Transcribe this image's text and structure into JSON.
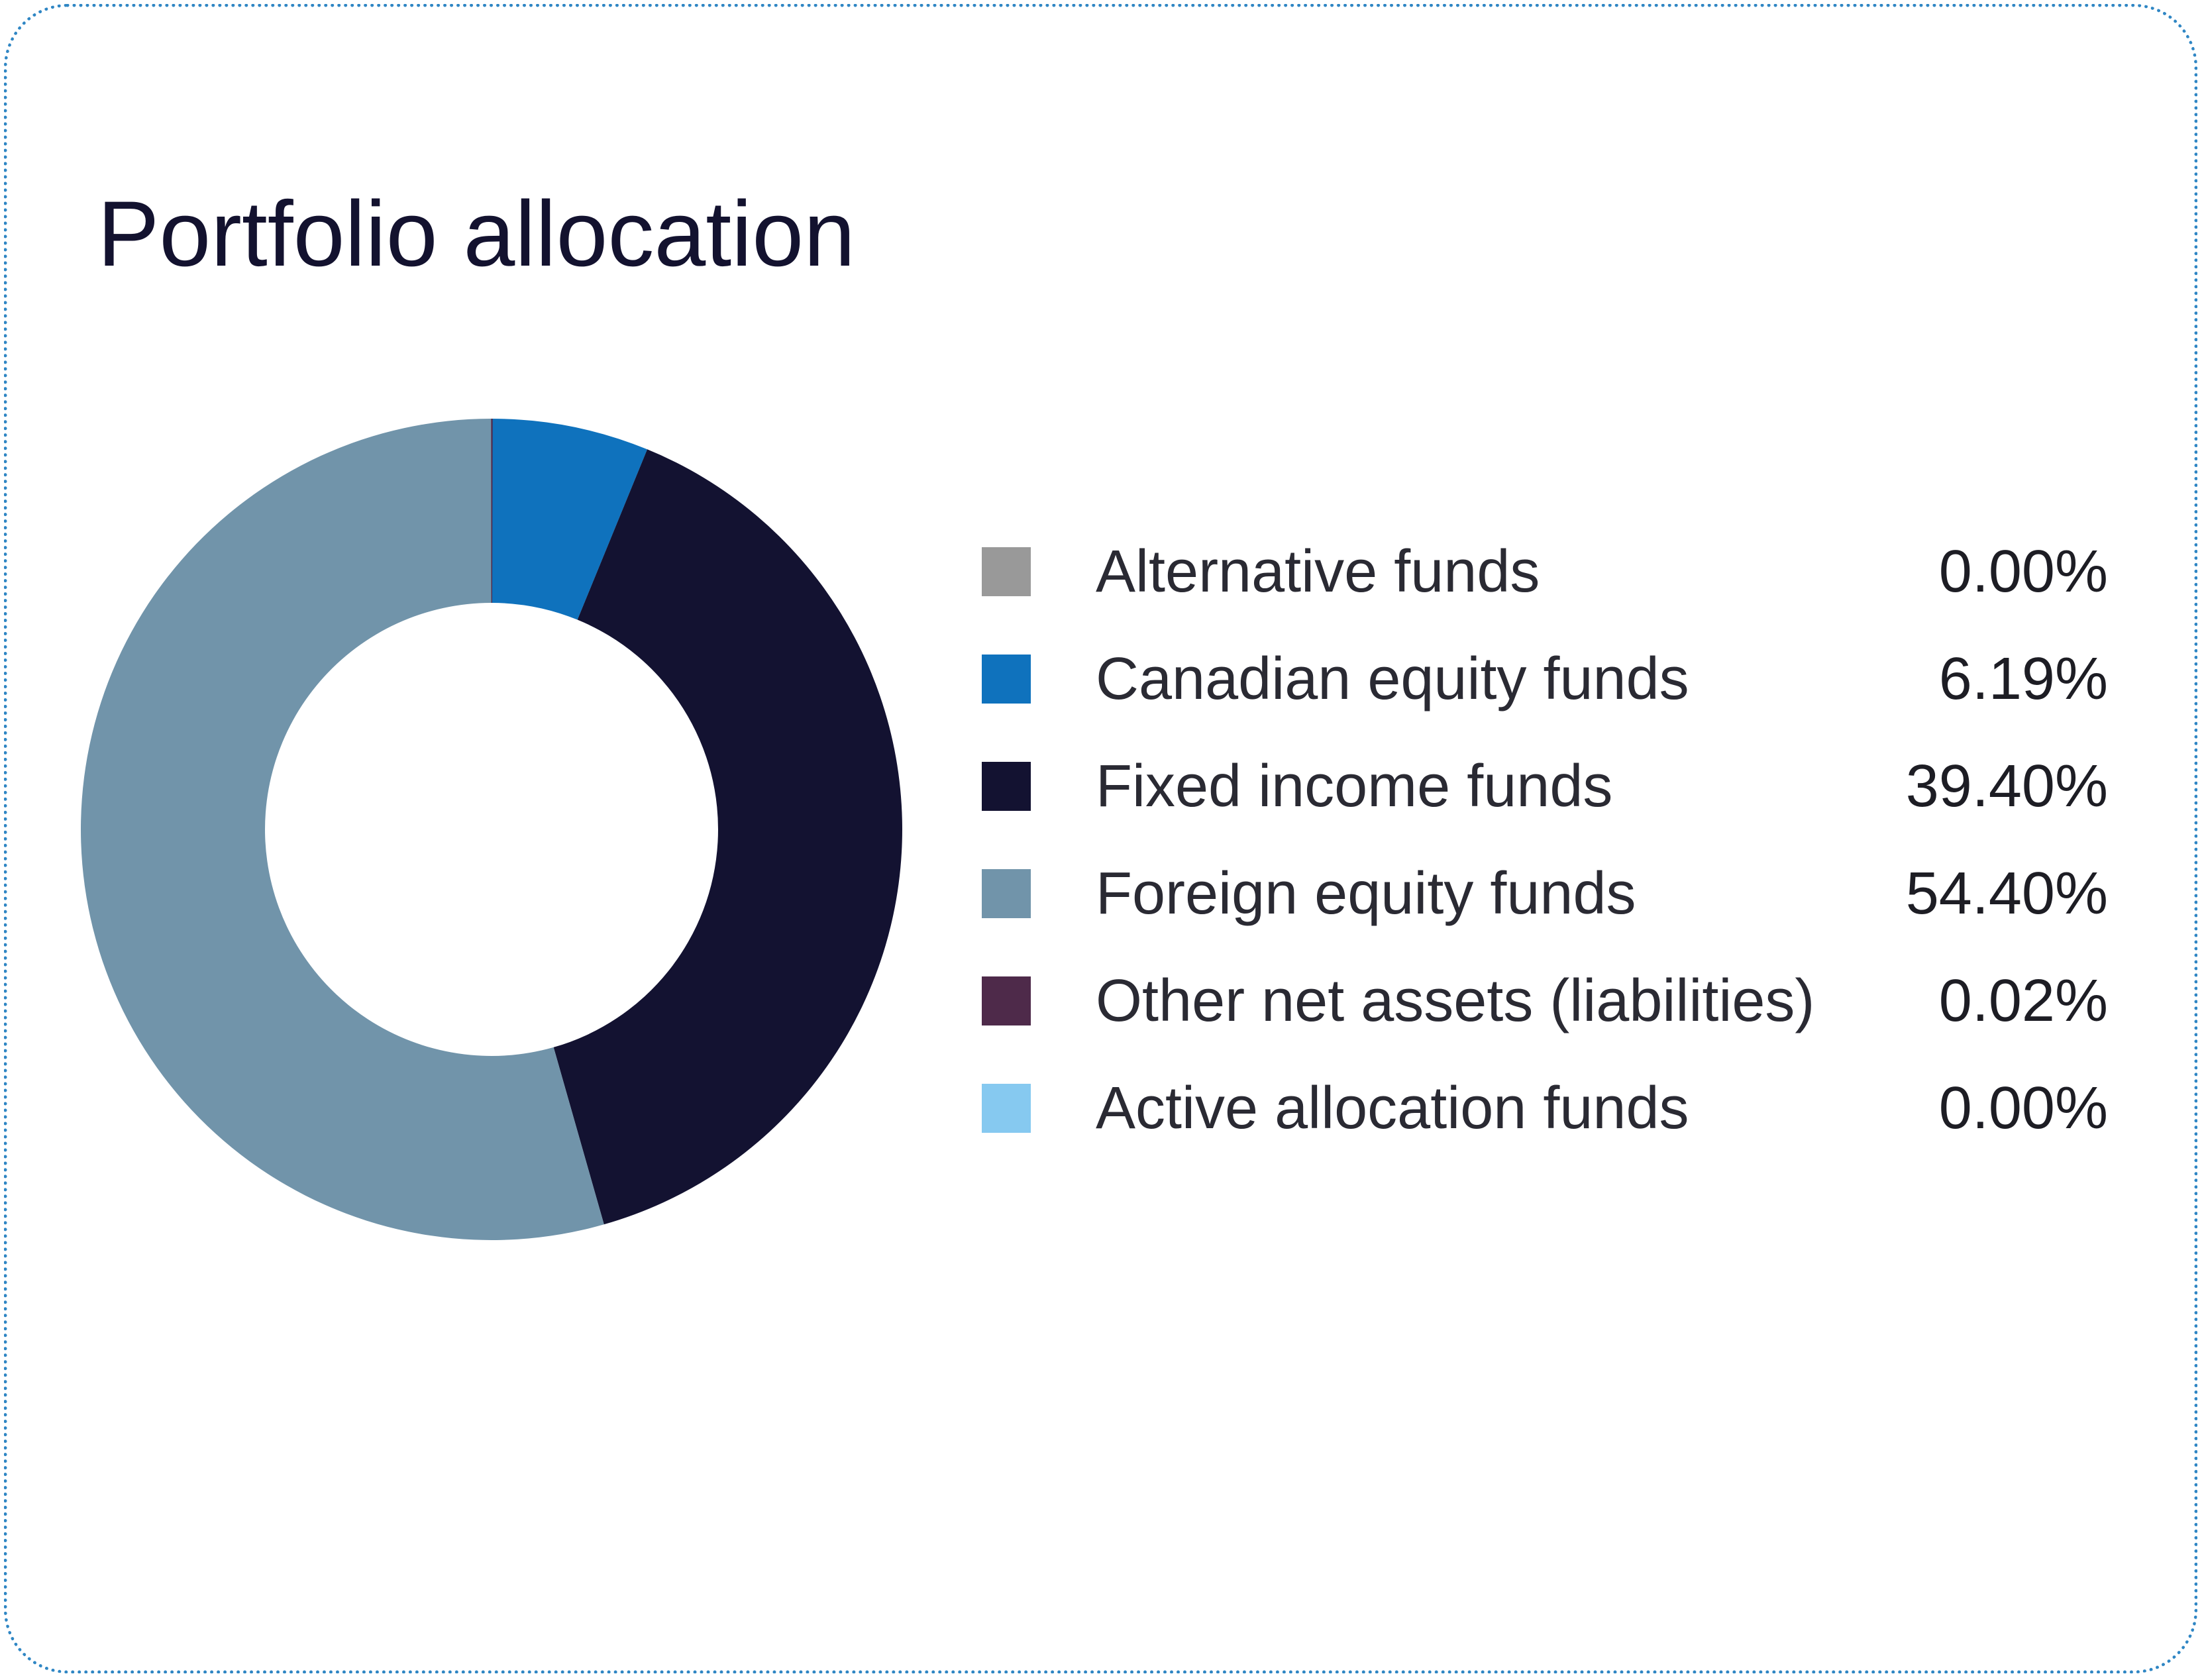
{
  "chart_data": {
    "type": "pie",
    "title": "Portfolio allocation",
    "donut": true,
    "legend_placement": "right",
    "series": [
      {
        "name": "Alternative funds",
        "value": 0.0,
        "display": "0.00%",
        "color": "#999999"
      },
      {
        "name": "Canadian equity funds",
        "value": 6.19,
        "display": "6.19%",
        "color": "#0f72bd"
      },
      {
        "name": "Fixed income funds",
        "value": 39.4,
        "display": "39.40%",
        "color": "#131231"
      },
      {
        "name": "Foreign equity funds",
        "value": 54.4,
        "display": "54.40%",
        "color": "#7194aa"
      },
      {
        "name": "Other net assets (liabilities)",
        "value": 0.02,
        "display": "0.02%",
        "color": "#4e2a4a"
      },
      {
        "name": "Active allocation funds",
        "value": 0.0,
        "display": "0.00%",
        "color": "#86c9f0"
      }
    ]
  }
}
